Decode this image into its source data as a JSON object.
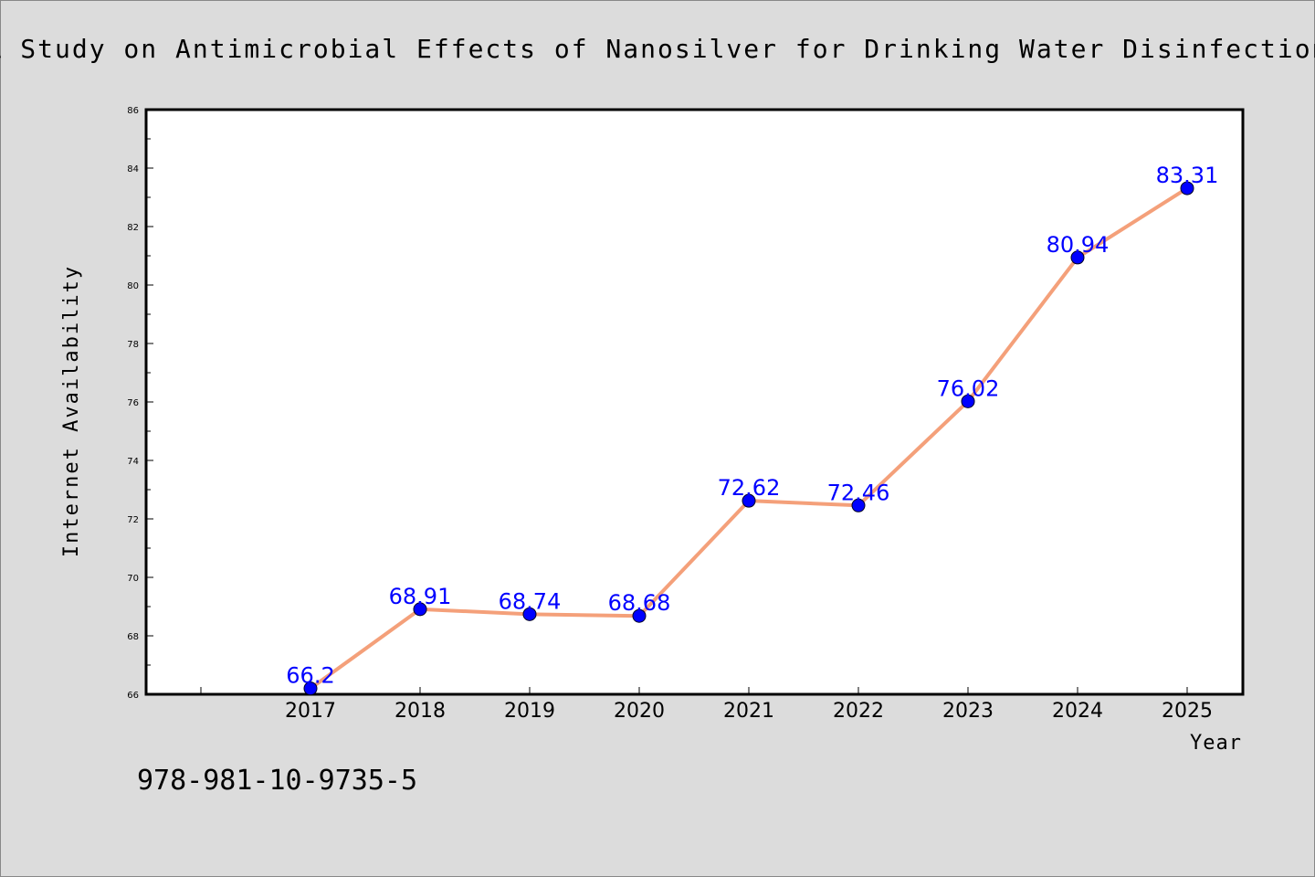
{
  "chart_data": {
    "type": "line",
    "title": "A Study on Antimicrobial Effects of Nanosilver for Drinking Water Disinfection",
    "xlabel": "Year",
    "ylabel": "Internet Availability",
    "categories": [
      "2017",
      "2018",
      "2019",
      "2020",
      "2021",
      "2022",
      "2023",
      "2024",
      "2025"
    ],
    "series": [
      {
        "values": [
          66.2,
          68.91,
          68.74,
          68.68,
          72.62,
          72.46,
          76.02,
          80.94,
          83.31
        ]
      }
    ],
    "data_labels": [
      "66.2",
      "68.91",
      "68.74",
      "68.68",
      "72.62",
      "72.46",
      "76.02",
      "80.94",
      "83.31"
    ],
    "ylim": [
      66,
      86
    ],
    "yticks": [
      "66",
      "68",
      "70",
      "72",
      "74",
      "76",
      "78",
      "80",
      "82",
      "84",
      "86"
    ],
    "grid": false,
    "legend": "none",
    "colors": {
      "line": "#f4a07a",
      "marker": "#0000ff",
      "data_label": "#0000ff",
      "background": "#dcdcdc",
      "plot_background": "#ffffff"
    }
  },
  "footnote": "978-981-10-9735-5"
}
